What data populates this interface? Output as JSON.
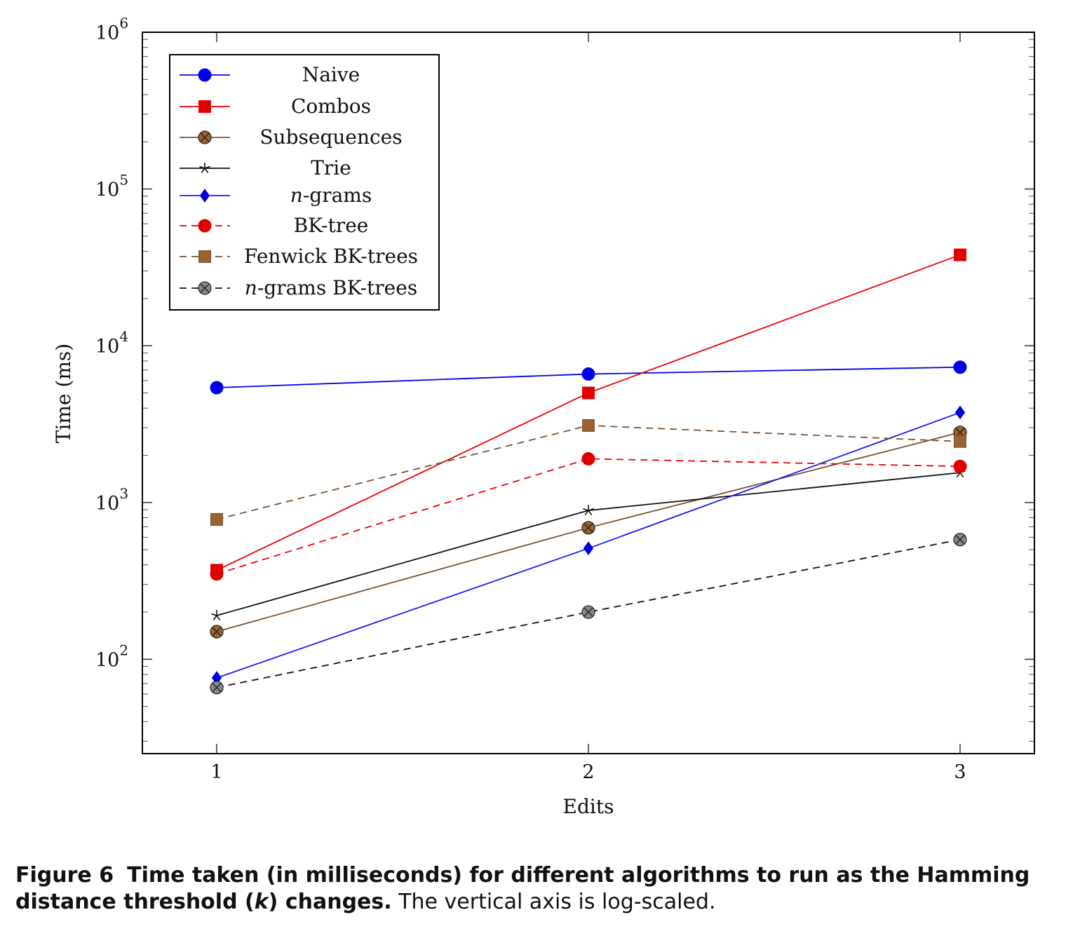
{
  "chart_data": {
    "type": "line",
    "xlabel": "Edits",
    "ylabel": "Time (ms)",
    "yscale": "log",
    "ylim": [
      25,
      1000000
    ],
    "xlim": [
      0.8,
      3.2
    ],
    "x": [
      1,
      2,
      3
    ],
    "x_tick_labels": [
      "1",
      "2",
      "3"
    ],
    "y_tick_labels": [
      {
        "base": "10",
        "exp": "2",
        "value": 100
      },
      {
        "base": "10",
        "exp": "3",
        "value": 1000
      },
      {
        "base": "10",
        "exp": "4",
        "value": 10000
      },
      {
        "base": "10",
        "exp": "5",
        "value": 100000
      },
      {
        "base": "10",
        "exp": "6",
        "value": 1000000
      }
    ],
    "grid": false,
    "legend_position": "top-left",
    "series": [
      {
        "name": "Naive",
        "values": [
          5400,
          6600,
          7300
        ],
        "color": "#0000ee",
        "dash": "solid",
        "marker": "circle",
        "fill": "#0000ee"
      },
      {
        "name": "Combos",
        "values": [
          370,
          5000,
          38000
        ],
        "color": "#ee0000",
        "dash": "solid",
        "marker": "square",
        "fill": "#e00000"
      },
      {
        "name": "Subsequences",
        "values": [
          150,
          690,
          2800
        ],
        "color": "#7a5230",
        "dash": "solid",
        "marker": "circle-x",
        "fill": "#9a6230"
      },
      {
        "name": "Trie",
        "values": [
          190,
          890,
          1550
        ],
        "color": "#111111",
        "dash": "solid",
        "marker": "star",
        "fill": "#111111"
      },
      {
        "name": "n-grams",
        "name_italic": "n",
        "name_rest": "-grams",
        "values": [
          76,
          510,
          3750
        ],
        "color": "#1a1aee",
        "dash": "solid",
        "marker": "diamond",
        "fill": "#0000dd"
      },
      {
        "name": "BK-tree",
        "values": [
          350,
          1900,
          1700
        ],
        "color": "#ee0000",
        "dash": "dashed",
        "marker": "circle",
        "fill": "#e00000"
      },
      {
        "name": "Fenwick BK-trees",
        "values": [
          780,
          3100,
          2450
        ],
        "color": "#7a5230",
        "dash": "dashed",
        "marker": "square",
        "fill": "#9a6230"
      },
      {
        "name": "n-grams BK-trees",
        "name_italic": "n",
        "name_rest": "-grams BK-trees",
        "values": [
          66,
          200,
          580
        ],
        "color": "#111111",
        "dash": "dashed",
        "marker": "circle-x",
        "fill": "#888888"
      }
    ]
  },
  "caption": {
    "prefix": "Figure 6",
    "bold_text": "Time taken (in milliseconds) for different algorithms to run as the Hamming distance threshold (",
    "bold_var": "k",
    "bold_end": ") changes.",
    "normal_text": " The vertical axis is log-scaled."
  }
}
